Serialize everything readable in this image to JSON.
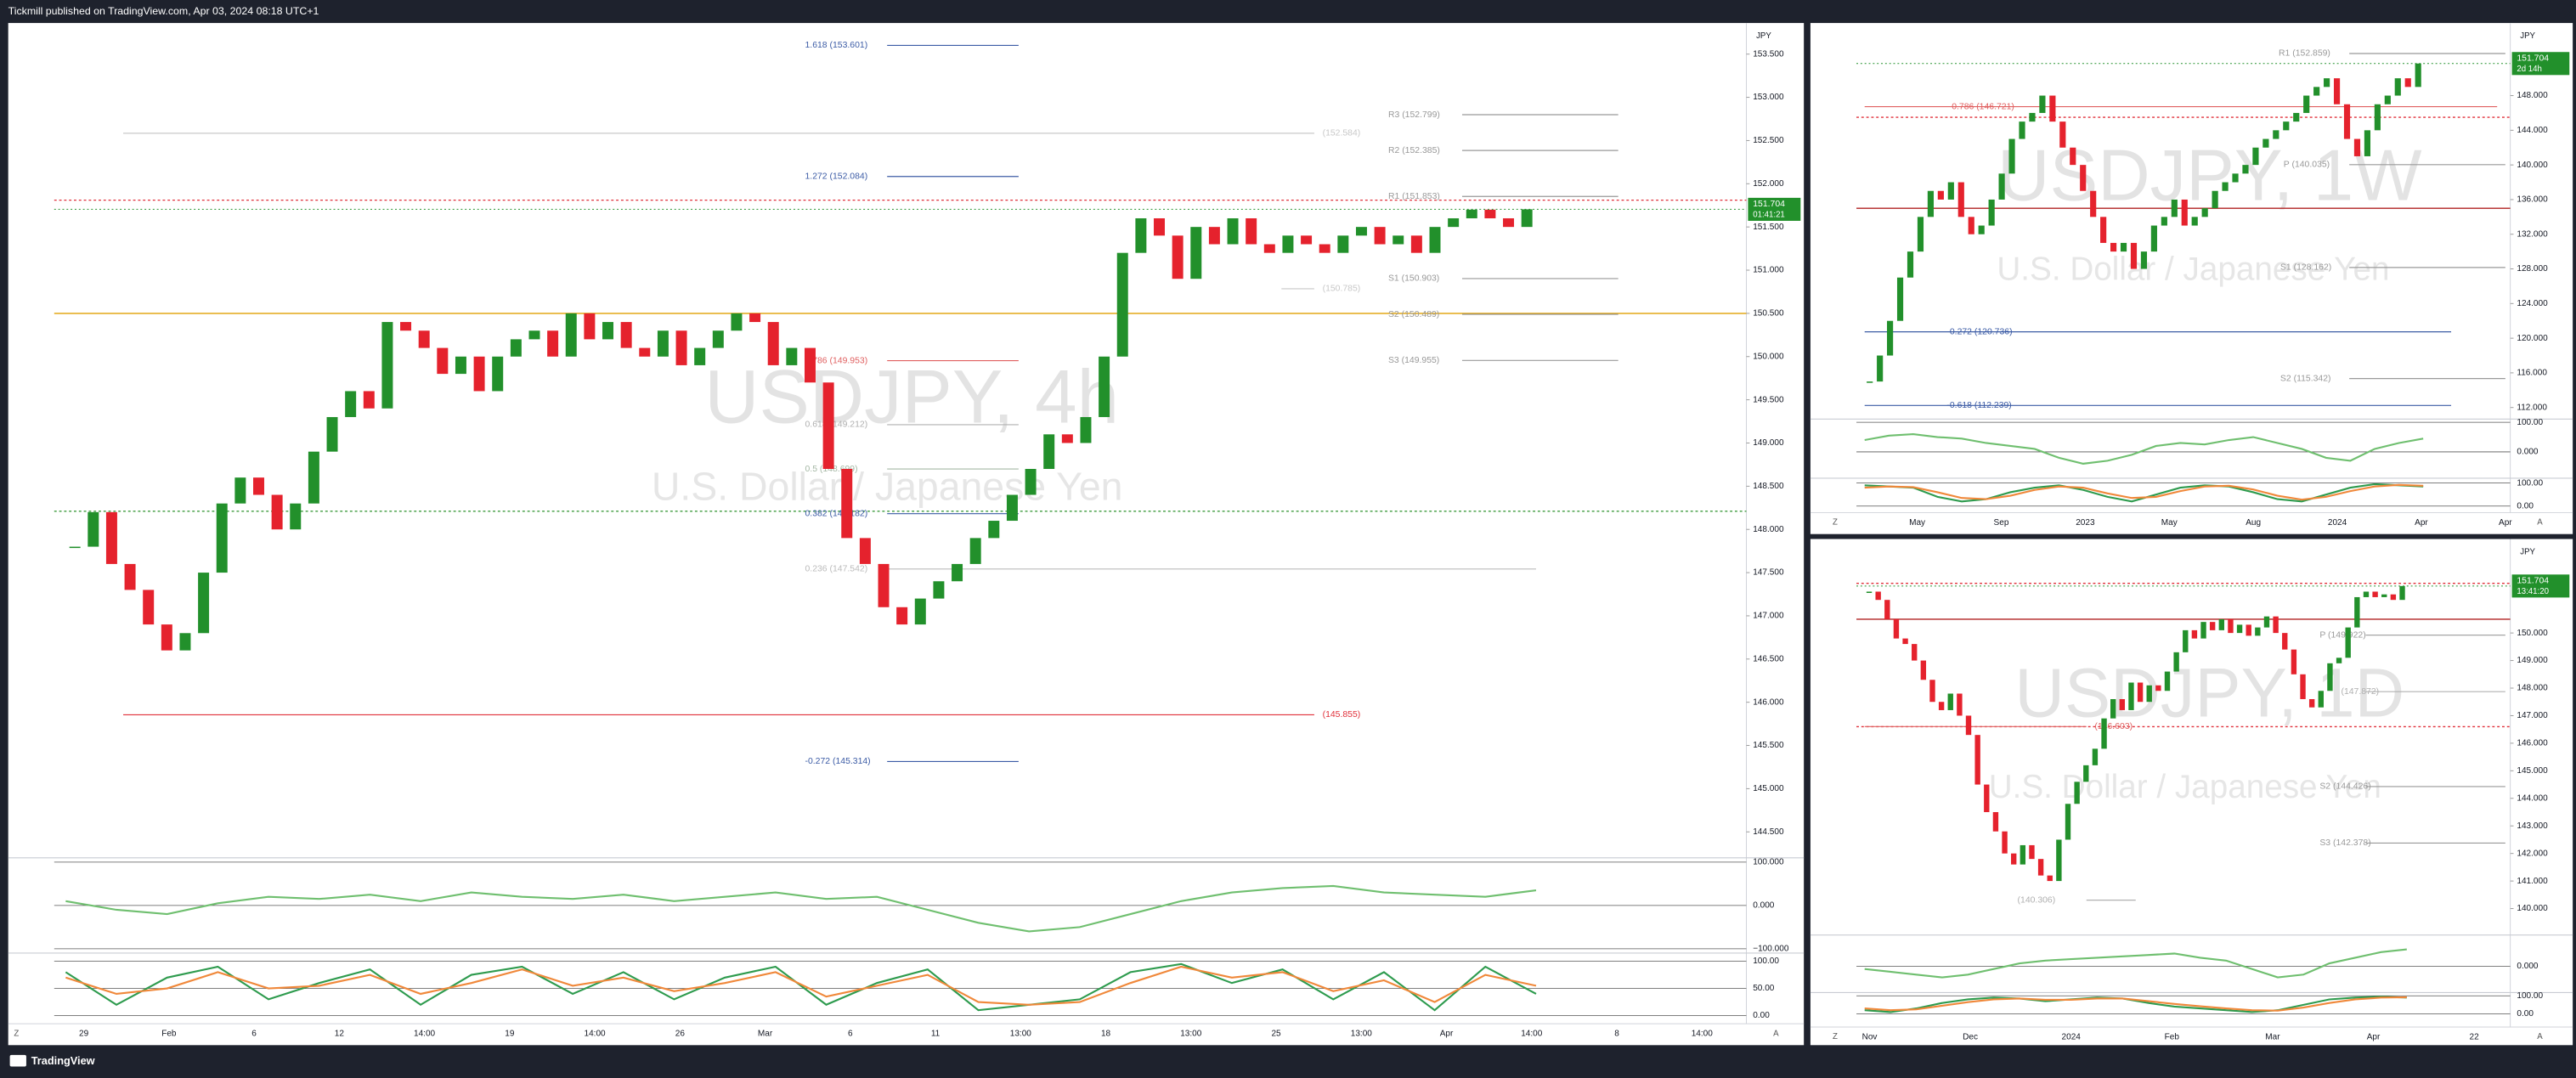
{
  "header": "Tickmill published on TradingView.com, Apr 03, 2024 08:18 UTC+1",
  "footer": "TradingView",
  "chart_data": [
    {
      "type": "candlestick",
      "symbol": "USDJPY, 4h",
      "description": "U.S. Dollar / Japanese Yen",
      "currency": "JPY",
      "up_color": "#22902b",
      "down_color": "#e5222d",
      "close": [
        147.8,
        148.2,
        147.6,
        147.3,
        146.9,
        146.6,
        146.8,
        147.5,
        148.3,
        148.6,
        148.4,
        148.0,
        148.3,
        148.9,
        149.3,
        149.6,
        149.4,
        150.4,
        150.3,
        150.1,
        149.8,
        150.0,
        149.6,
        150.0,
        150.2,
        150.3,
        150.0,
        150.5,
        150.2,
        150.4,
        150.1,
        150.0,
        150.3,
        149.9,
        150.1,
        150.3,
        150.5,
        150.4,
        149.9,
        150.1,
        149.7,
        148.7,
        147.9,
        147.6,
        147.1,
        146.9,
        147.2,
        147.4,
        147.6,
        147.9,
        148.1,
        148.4,
        148.7,
        149.1,
        149.0,
        149.3,
        150.0,
        151.2,
        151.6,
        151.4,
        150.9,
        151.5,
        151.3,
        151.6,
        151.3,
        151.2,
        151.4,
        151.3,
        151.2,
        151.4,
        151.5,
        151.3,
        151.4,
        151.2,
        151.5,
        151.6,
        151.7,
        151.6,
        151.5,
        151.704
      ],
      "ylim": [
        144.2,
        153.86
      ],
      "yticks": [
        {
          "value": 144.5,
          "label": "144.500"
        },
        {
          "value": 145,
          "label": "145.000"
        },
        {
          "value": 145.5,
          "label": "145.500"
        },
        {
          "value": 146,
          "label": "146.000"
        },
        {
          "value": 146.5,
          "label": "146.500"
        },
        {
          "value": 147,
          "label": "147.000"
        },
        {
          "value": 147.5,
          "label": "147.500"
        },
        {
          "value": 148,
          "label": "148.000"
        },
        {
          "value": 148.5,
          "label": "148.500"
        },
        {
          "value": 149,
          "label": "149.000"
        },
        {
          "value": 149.5,
          "label": "149.500"
        },
        {
          "value": 150,
          "label": "150.000"
        },
        {
          "value": 150.5,
          "label": "150.500"
        },
        {
          "value": 151,
          "label": "151.000"
        },
        {
          "value": 151.5,
          "label": "151.500"
        },
        {
          "value": 152,
          "label": "152.000"
        },
        {
          "value": 152.5,
          "label": "152.500"
        },
        {
          "value": 153,
          "label": "153.000"
        },
        {
          "value": 153.5,
          "label": "153.500"
        }
      ],
      "last_price": 151.704,
      "countdown": "01:41:21",
      "xticks": [
        "29",
        "Feb",
        "6",
        "12",
        "14:00",
        "19",
        "14:00",
        "26",
        "Mar",
        "6",
        "11",
        "13:00",
        "18",
        "13:00",
        "25",
        "13:00",
        "Apr",
        "14:00",
        "8",
        "14:00"
      ],
      "hlines": [
        {
          "value": 151.81,
          "color": "#e0303a",
          "style": "dotted"
        },
        {
          "value": 150.5,
          "color": "#e0a000",
          "style": "solid"
        },
        {
          "value": 148.21,
          "color": "#3c9a3c",
          "style": "dotted"
        }
      ],
      "levels": [
        {
          "label": "1.618 (153.601)",
          "value": 153.601,
          "color": "#3b5ba5"
        },
        {
          "label": "1.272 (152.084)",
          "value": 152.084,
          "color": "#3b5ba5"
        },
        {
          "label": "(152.584)",
          "value": 152.584,
          "color": "#c8c8c8"
        },
        {
          "label": "R3 (152.799)",
          "value": 152.799,
          "color": "#999999"
        },
        {
          "label": "R2 (152.385)",
          "value": 152.385,
          "color": "#999999"
        },
        {
          "label": "R1 (151.853)",
          "value": 151.853,
          "color": "#999999"
        },
        {
          "label": "S1 (150.903)",
          "value": 150.903,
          "color": "#999999"
        },
        {
          "label": "S2 (150.489)",
          "value": 150.489,
          "color": "#999999"
        },
        {
          "label": "S3 (149.955)",
          "value": 149.955,
          "color": "#999999"
        },
        {
          "label": "(150.785)",
          "value": 150.785,
          "color": "#c8c8c8"
        },
        {
          "label": "0.786 (149.953)",
          "value": 149.953,
          "color": "#e06060"
        },
        {
          "label": "0.618 (149.212)",
          "value": 149.212,
          "color": "#b0b0b0"
        },
        {
          "label": "0.5 (148.699)",
          "value": 148.699,
          "color": "#a5b8a5"
        },
        {
          "label": "0.382 (148.182)",
          "value": 148.182,
          "color": "#3b5ba5"
        },
        {
          "label": "0.236 (147.542)",
          "value": 147.542,
          "color": "#bbbbbb"
        },
        {
          "label": "(145.855)",
          "value": 145.855,
          "color": "#e0303a"
        },
        {
          "label": "-0.272 (145.314)",
          "value": 145.314,
          "color": "#3b5ba5"
        }
      ],
      "indicators": [
        {
          "ylim": [
            -110,
            110
          ],
          "yticks": [
            {
              "value": 100,
              "label": "100.000"
            },
            {
              "value": 0,
              "label": "0.000"
            },
            {
              "value": -100,
              "label": "−100.000"
            }
          ],
          "series": [
            {
              "color": "#6fbf6f",
              "values": [
                10,
                -10,
                -20,
                5,
                20,
                15,
                25,
                10,
                30,
                20,
                15,
                25,
                10,
                20,
                30,
                15,
                20,
                -10,
                -40,
                -60,
                -50,
                -20,
                10,
                30,
                40,
                45,
                30,
                25,
                20,
                35
              ]
            }
          ]
        },
        {
          "ylim": [
            -18,
            115
          ],
          "yticks": [
            {
              "value": 100,
              "label": "100.00"
            },
            {
              "value": 50,
              "label": "50.00"
            },
            {
              "value": 0,
              "label": "0.00"
            }
          ],
          "series": [
            {
              "color": "#2e9b4e",
              "values": [
                80,
                20,
                70,
                90,
                30,
                60,
                85,
                20,
                75,
                90,
                40,
                80,
                30,
                70,
                90,
                20,
                60,
                85,
                10,
                20,
                30,
                80,
                95,
                60,
                85,
                30,
                80,
                10,
                90,
                40
              ]
            },
            {
              "color": "#f0883a",
              "values": [
                70,
                40,
                50,
                80,
                50,
                55,
                75,
                40,
                60,
                85,
                55,
                70,
                45,
                60,
                80,
                35,
                55,
                75,
                25,
                20,
                25,
                60,
                90,
                70,
                80,
                45,
                65,
                25,
                75,
                55
              ]
            }
          ]
        }
      ],
      "buttons": [
        "Z",
        "A"
      ]
    },
    {
      "type": "candlestick",
      "symbol": "USDJPY, 1W",
      "description": "U.S. Dollar / Japanese Yen",
      "currency": "JPY",
      "up_color": "#22902b",
      "down_color": "#e5222d",
      "close": [
        115,
        118,
        122,
        127,
        130,
        134,
        137,
        136,
        138,
        134,
        132,
        133,
        136,
        139,
        143,
        145,
        146,
        148,
        145,
        142,
        140,
        137,
        134,
        131,
        130,
        131,
        128,
        130,
        133,
        134,
        136,
        133,
        134,
        135,
        137,
        138,
        139,
        140,
        142,
        143,
        144,
        145,
        146,
        148,
        149,
        150,
        147,
        143,
        141,
        144,
        147,
        148,
        150,
        149,
        151.704
      ],
      "ylim": [
        110.67,
        156.38
      ],
      "yticks": [
        {
          "value": 112,
          "label": "112.000"
        },
        {
          "value": 116,
          "label": "116.000"
        },
        {
          "value": 120,
          "label": "120.000"
        },
        {
          "value": 124,
          "label": "124.000"
        },
        {
          "value": 128,
          "label": "128.000"
        },
        {
          "value": 132,
          "label": "132.000"
        },
        {
          "value": 136,
          "label": "136.000"
        },
        {
          "value": 140,
          "label": "140.000"
        },
        {
          "value": 144,
          "label": "144.000"
        },
        {
          "value": 148,
          "label": "148.000"
        }
      ],
      "last_price": 151.704,
      "countdown": "2d 14h",
      "xticks": [
        "May",
        "Sep",
        "2023",
        "May",
        "Aug",
        "2024",
        "Apr",
        "Apr"
      ],
      "hlines": [
        {
          "value": 145.5,
          "color": "#e0303a",
          "style": "dotted"
        },
        {
          "value": 135,
          "color": "#b02020",
          "style": "solid"
        }
      ],
      "levels": [
        {
          "label": "R1 (152.859)",
          "value": 152.859,
          "color": "#999999"
        },
        {
          "label": "0.786 (146.721)",
          "value": 146.721,
          "color": "#e06060"
        },
        {
          "label": "P (140.035)",
          "value": 140.035,
          "color": "#999999"
        },
        {
          "label": "S1 (128.162)",
          "value": 128.162,
          "color": "#999999"
        },
        {
          "label": "-0.272 (120.736)",
          "value": 120.736,
          "color": "#3b5ba5"
        },
        {
          "label": "S2 (115.342)",
          "value": 115.342,
          "color": "#999999"
        },
        {
          "label": "-0.618 (112.239)",
          "value": 112.239,
          "color": "#3b5ba5"
        }
      ],
      "indicators": [
        {
          "ylim": [
            -89,
            111
          ],
          "yticks": [
            {
              "value": 100,
              "label": "100.00"
            },
            {
              "value": 0,
              "label": "0.000"
            }
          ],
          "series": [
            {
              "color": "#6fbf6f",
              "values": [
                40,
                55,
                60,
                50,
                45,
                30,
                20,
                10,
                -20,
                -40,
                -30,
                -10,
                20,
                30,
                25,
                40,
                50,
                30,
                10,
                -20,
                -30,
                10,
                30,
                45
              ]
            }
          ]
        },
        {
          "ylim": [
            -36,
            121
          ],
          "yticks": [
            {
              "value": 100,
              "label": "100.00"
            },
            {
              "value": 0,
              "label": "0.00"
            }
          ],
          "series": [
            {
              "color": "#2e9b4e",
              "values": [
                90,
                85,
                80,
                40,
                20,
                30,
                60,
                80,
                90,
                70,
                40,
                20,
                50,
                80,
                90,
                85,
                60,
                30,
                20,
                50,
                80,
                95,
                90,
                85
              ]
            },
            {
              "color": "#f0883a",
              "values": [
                80,
                85,
                82,
                60,
                35,
                30,
                45,
                70,
                85,
                80,
                55,
                35,
                40,
                65,
                85,
                88,
                72,
                45,
                28,
                40,
                65,
                85,
                92,
                88
              ]
            }
          ]
        }
      ],
      "buttons": [
        "Z",
        "A"
      ]
    },
    {
      "type": "candlestick",
      "symbol": "USDJPY, 1D",
      "description": "U.S. Dollar / Japanese Yen",
      "currency": "JPY",
      "up_color": "#22902b",
      "down_color": "#e5222d",
      "close": [
        151.5,
        151.2,
        150.5,
        149.8,
        149.6,
        149.0,
        148.3,
        147.5,
        147.2,
        147.8,
        147.0,
        146.3,
        144.5,
        143.5,
        142.8,
        142.0,
        141.6,
        142.3,
        141.8,
        141.2,
        141.0,
        142.5,
        143.8,
        144.6,
        145.2,
        145.8,
        146.9,
        147.6,
        147.2,
        148.2,
        147.5,
        148.1,
        147.9,
        148.6,
        149.3,
        150.1,
        149.8,
        150.4,
        150.1,
        150.5,
        150.0,
        150.3,
        149.9,
        150.2,
        150.6,
        150.0,
        149.4,
        148.5,
        147.6,
        147.3,
        147.9,
        148.9,
        149.1,
        150.2,
        151.3,
        151.5,
        151.3,
        151.4,
        151.2,
        151.704
      ],
      "ylim": [
        139.04,
        153.41
      ],
      "yticks": [
        {
          "value": 140,
          "label": "140.000"
        },
        {
          "value": 141,
          "label": "141.000"
        },
        {
          "value": 142,
          "label": "142.000"
        },
        {
          "value": 143,
          "label": "143.000"
        },
        {
          "value": 144,
          "label": "144.000"
        },
        {
          "value": 145,
          "label": "145.000"
        },
        {
          "value": 146,
          "label": "146.000"
        },
        {
          "value": 147,
          "label": "147.000"
        },
        {
          "value": 148,
          "label": "148.000"
        },
        {
          "value": 149,
          "label": "149.000"
        },
        {
          "value": 150,
          "label": "150.000"
        }
      ],
      "last_price": 151.704,
      "countdown": "13:41:20",
      "xticks": [
        "Nov",
        "Dec",
        "2024",
        "Feb",
        "Mar",
        "Apr",
        "22"
      ],
      "hlines": [
        {
          "value": 151.8,
          "color": "#e0303a",
          "style": "dotted"
        },
        {
          "value": 150.5,
          "color": "#b02020",
          "style": "solid"
        },
        {
          "value": 146.6,
          "color": "#e0303a",
          "style": "dotted"
        }
      ],
      "levels": [
        {
          "label": "P (149.922)",
          "value": 149.922,
          "color": "#999999"
        },
        {
          "label": "(147.872)",
          "value": 147.872,
          "color": "#b0b0b0"
        },
        {
          "label": "(146.603)",
          "value": 146.603,
          "color": "#e06060"
        },
        {
          "label": "S2 (144.426)",
          "value": 144.426,
          "color": "#999999"
        },
        {
          "label": "S3 (142.378)",
          "value": 142.378,
          "color": "#999999"
        },
        {
          "label": "(140.306)",
          "value": 140.306,
          "color": "#b0b0b0"
        }
      ],
      "indicators": [
        {
          "ylim": [
            -94,
            111
          ],
          "yticks": [
            {
              "value": 0,
              "label": "0.000"
            }
          ],
          "series": [
            {
              "color": "#6fbf6f",
              "values": [
                -10,
                -20,
                -30,
                -40,
                -30,
                -10,
                10,
                20,
                25,
                30,
                35,
                40,
                45,
                30,
                20,
                -10,
                -40,
                -30,
                10,
                30,
                50,
                60
              ]
            }
          ]
        },
        {
          "ylim": [
            -64,
            118
          ],
          "yticks": [
            {
              "value": 100,
              "label": "100.00"
            },
            {
              "value": 0,
              "label": "0.00"
            }
          ],
          "series": [
            {
              "color": "#2e9b4e",
              "values": [
                20,
                10,
                30,
                60,
                80,
                90,
                85,
                70,
                80,
                90,
                85,
                60,
                40,
                30,
                20,
                10,
                20,
                50,
                80,
                90,
                95,
                90
              ]
            },
            {
              "color": "#f0883a",
              "values": [
                30,
                20,
                25,
                45,
                65,
                80,
                85,
                78,
                78,
                85,
                85,
                70,
                55,
                42,
                30,
                20,
                18,
                35,
                60,
                80,
                90,
                92
              ]
            }
          ]
        }
      ],
      "buttons": [
        "Z",
        "A"
      ]
    }
  ]
}
